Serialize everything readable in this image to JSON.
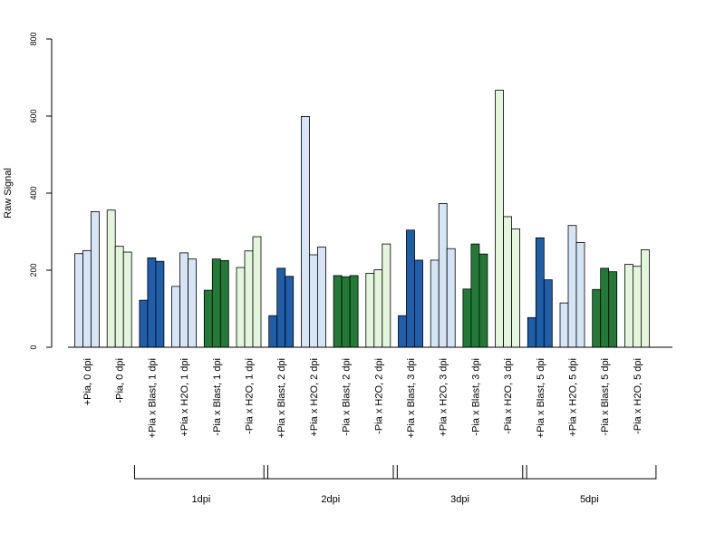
{
  "chart_data": {
    "type": "bar",
    "title": "",
    "xlabel": "",
    "ylabel": "Raw Signal",
    "ylim": [
      0,
      800
    ],
    "yticks": [
      0,
      200,
      400,
      600,
      800
    ],
    "grid": false,
    "legend": "none",
    "colors": {
      "light_blue": "#d6e5f5",
      "light_green": "#e3f5dc",
      "dark_blue": "#1f5ea8",
      "dark_green": "#237a38"
    },
    "categories": [
      {
        "label": "+Pia, 0 dpi",
        "color": "light_blue",
        "values": [
          243,
          251,
          352
        ]
      },
      {
        "label": "-Pia, 0 dpi",
        "color": "light_green",
        "values": [
          356,
          262,
          247
        ]
      },
      {
        "label": "+Pia x Blast, 1 dpi",
        "color": "dark_blue",
        "values": [
          122,
          232,
          223
        ]
      },
      {
        "label": "+Pia x H2O, 1 dpi",
        "color": "light_blue",
        "values": [
          158,
          245,
          229
        ]
      },
      {
        "label": "-Pia x Blast, 1 dpi",
        "color": "dark_green",
        "values": [
          148,
          229,
          225
        ]
      },
      {
        "label": "-Pia x H2O, 1 dpi",
        "color": "light_green",
        "values": [
          207,
          250,
          287
        ]
      },
      {
        "label": "+Pia x Blast, 2 dpi",
        "color": "dark_blue",
        "values": [
          82,
          205,
          184
        ]
      },
      {
        "label": "+Pia x H2O, 2 dpi",
        "color": "light_blue",
        "values": [
          599,
          240,
          260
        ]
      },
      {
        "label": "-Pia x Blast, 2 dpi",
        "color": "dark_green",
        "values": [
          186,
          183,
          186
        ]
      },
      {
        "label": "-Pia x H2O, 2 dpi",
        "color": "light_green",
        "values": [
          192,
          201,
          268
        ]
      },
      {
        "label": "+Pia x Blast, 3 dpi",
        "color": "dark_blue",
        "values": [
          82,
          304,
          226
        ]
      },
      {
        "label": "+Pia x H2O, 3 dpi",
        "color": "light_blue",
        "values": [
          226,
          373,
          256
        ]
      },
      {
        "label": "-Pia x Blast, 3 dpi",
        "color": "dark_green",
        "values": [
          151,
          268,
          242
        ]
      },
      {
        "label": "-Pia x H2O, 3 dpi",
        "color": "light_green",
        "values": [
          667,
          339,
          307
        ]
      },
      {
        "label": "+Pia x Blast, 5 dpi",
        "color": "dark_blue",
        "values": [
          77,
          284,
          175
        ]
      },
      {
        "label": "+Pia x H2O, 5 dpi",
        "color": "light_blue",
        "values": [
          115,
          316,
          272
        ]
      },
      {
        "label": "-Pia x Blast, 5 dpi",
        "color": "dark_green",
        "values": [
          150,
          205,
          196
        ]
      },
      {
        "label": "-Pia x H2O, 5 dpi",
        "color": "light_green",
        "values": [
          215,
          210,
          253
        ]
      }
    ],
    "groups": [
      {
        "label": "1dpi",
        "start": 2,
        "end": 5
      },
      {
        "label": "2dpi",
        "start": 6,
        "end": 9
      },
      {
        "label": "3dpi",
        "start": 10,
        "end": 13
      },
      {
        "label": "5dpi",
        "start": 14,
        "end": 17
      }
    ]
  }
}
